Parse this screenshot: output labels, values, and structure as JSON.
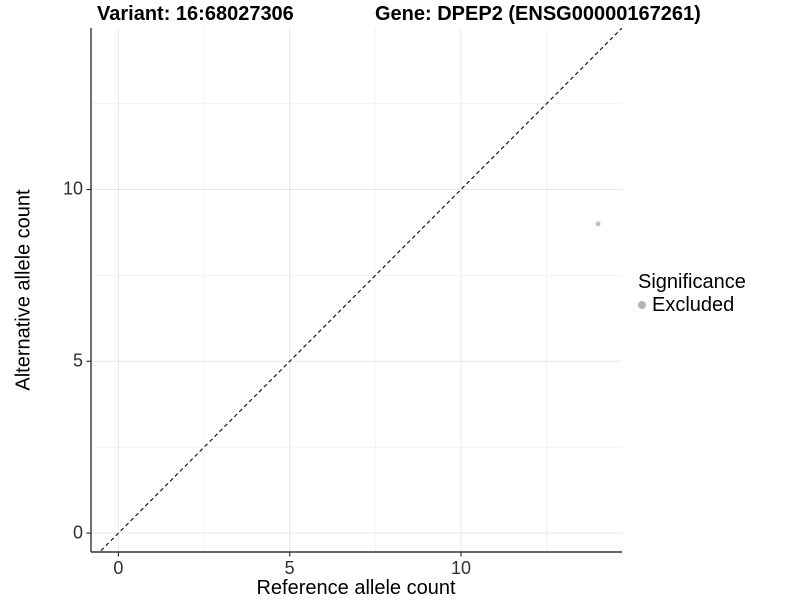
{
  "header": {
    "variant_title": "Variant: 16:68027306",
    "gene_title": "Gene: DPEP2 (ENSG00000167261)"
  },
  "legend": {
    "title": "Significance",
    "items": [
      {
        "label": "Excluded",
        "color": "#b3b3b3"
      }
    ]
  },
  "chart_data": {
    "type": "scatter",
    "title": "Variant: 16:68027306  /  Gene: DPEP2 (ENSG00000167261)",
    "xlabel": "Reference allele count",
    "ylabel": "Alternative allele count",
    "xlim": [
      -0.8,
      14.7
    ],
    "ylim": [
      -0.55,
      14.7
    ],
    "x_major_ticks": [
      0,
      5,
      10
    ],
    "y_major_ticks": [
      0,
      5,
      10
    ],
    "x_minor_ticks": [
      2.5,
      7.5,
      12.5
    ],
    "y_minor_ticks": [
      2.5,
      7.5,
      12.5
    ],
    "grid": true,
    "legend_position": "right",
    "series": [
      {
        "name": "Excluded",
        "color": "#c0c0c0",
        "point_radius": 2.5,
        "points": [
          {
            "x": 14,
            "y": 9
          }
        ]
      }
    ],
    "reference_line": {
      "kind": "identity",
      "slope": 1,
      "intercept": 0,
      "style": "dashed",
      "color": "#1a1a1a"
    }
  },
  "style": {
    "grid_major_color": "#e8e8e8",
    "grid_minor_color": "#f3f3f3",
    "axis_line_color": "#333333",
    "tick_mark_color": "#333333",
    "tick_label_color": "#303030",
    "background": "#ffffff"
  }
}
